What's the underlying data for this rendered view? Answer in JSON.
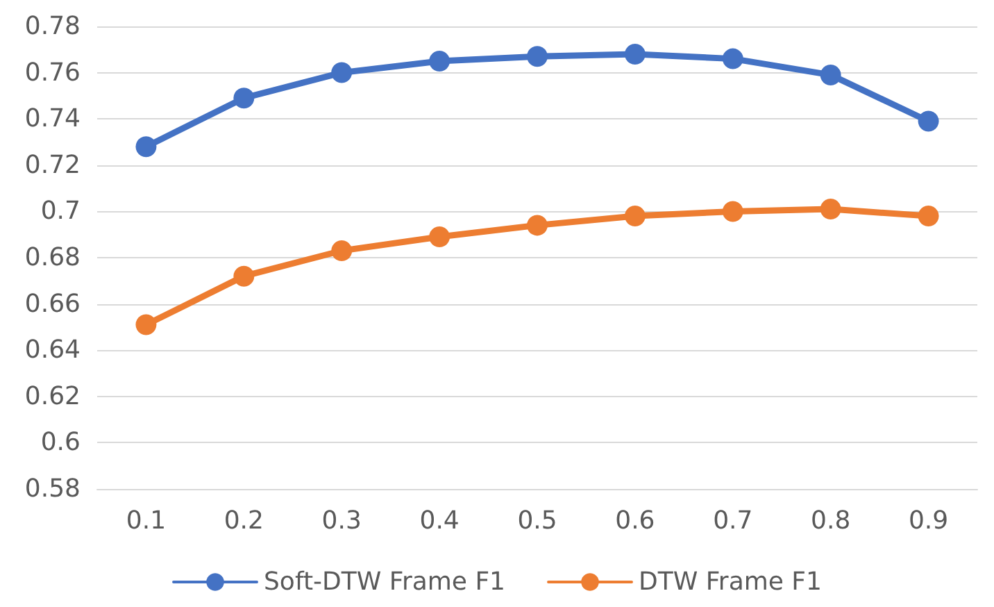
{
  "chart_data": {
    "type": "line",
    "categories": [
      "0.1",
      "0.2",
      "0.3",
      "0.4",
      "0.5",
      "0.6",
      "0.7",
      "0.8",
      "0.9"
    ],
    "series": [
      {
        "name": "Soft-DTW Frame F1",
        "color": "#4472c4",
        "values": [
          0.728,
          0.749,
          0.76,
          0.765,
          0.767,
          0.768,
          0.766,
          0.759,
          0.739
        ]
      },
      {
        "name": "DTW Frame F1",
        "color": "#ed7d31",
        "values": [
          0.651,
          0.672,
          0.683,
          0.689,
          0.694,
          0.698,
          0.7,
          0.701,
          0.698
        ]
      }
    ],
    "ylim": [
      0.58,
      0.78
    ],
    "yticks": [
      0.58,
      0.6,
      0.62,
      0.64,
      0.66,
      0.68,
      0.7,
      0.72,
      0.74,
      0.76,
      0.78
    ],
    "grid": "y",
    "legend": "bottom",
    "marker": "circle",
    "line_style": "solid"
  }
}
